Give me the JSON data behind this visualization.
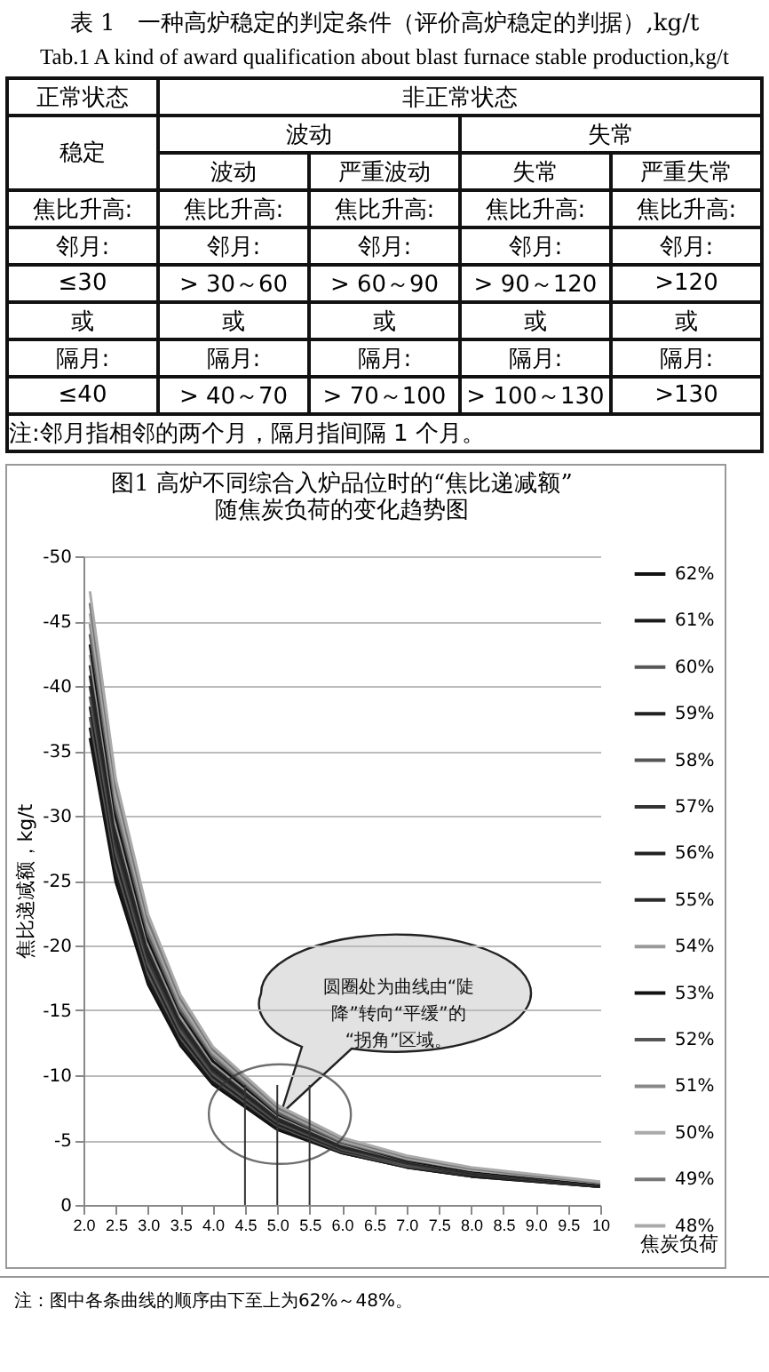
{
  "chart_data": [
    {
      "type": "other",
      "title": "表 1　一种高炉稳定的判定条件（评价高炉稳定的判据）,kg/t",
      "subtitle": "Tab.1 A kind of award qualification about blast furnace stable production,kg/t",
      "annotations": [
        "正常状态",
        "非正常状态",
        "稳定",
        "波动",
        "失常",
        "波动",
        "严重波动",
        "失常",
        "严重失常",
        "焦比升高:",
        "焦比升高:",
        "焦比升高:",
        "焦比升高:",
        "焦比升高:",
        "邻月:",
        "邻月:",
        "邻月:",
        "邻月:",
        "邻月:",
        "≤30",
        "> 30～60",
        "> 60～90",
        "> 90～120",
        ">120",
        "或",
        "或",
        "或",
        "或",
        "或",
        "隔月:",
        "隔月:",
        "隔月:",
        "隔月:",
        "隔月:",
        "≤40",
        "> 40～70",
        "> 70～100",
        "> 100～130",
        ">130",
        "注:邻月指相邻的两个月，隔月指间隔 1 个月。"
      ]
    },
    {
      "type": "line",
      "title": "图1  高炉不同综合入炉品位时的“焦比递减额”\n随焦炭负荷的变化趋势图",
      "xlabel": "焦炭负荷",
      "ylabel": "焦比递减额，kg/t",
      "x": [
        2.1,
        2.5,
        3,
        3.5,
        4,
        5,
        6,
        7,
        8,
        10
      ],
      "xlim": [
        2,
        10
      ],
      "ylim": [
        0,
        -50
      ],
      "xticks": [
        {
          "value": 2,
          "label": "2.0"
        },
        2.5,
        {
          "value": 3,
          "label": "3.0"
        },
        3.5,
        {
          "value": 4,
          "label": "4.0"
        },
        4.5,
        {
          "value": 5,
          "label": "5.0"
        },
        5.5,
        {
          "value": 6,
          "label": "6.0"
        },
        6.5,
        {
          "value": 7,
          "label": "7.0"
        },
        7.5,
        {
          "value": 8,
          "label": "8.0"
        },
        8.5,
        {
          "value": 9,
          "label": "9.0"
        },
        9.5,
        10
      ],
      "yticks": [
        0,
        -5,
        -10,
        -15,
        -20,
        -25,
        -30,
        -35,
        -40,
        -45,
        -50
      ],
      "grid": "y",
      "legend": "right",
      "series": [
        {
          "name": "62%",
          "color": "#111111",
          "values": [
            -36.0,
            -24.9,
            -17.0,
            -12.3,
            -9.3,
            -5.8,
            -4.0,
            -2.9,
            -2.2,
            -1.4
          ]
        },
        {
          "name": "61%",
          "color": "#1a1a1a",
          "values": [
            -36.8,
            -25.5,
            -17.4,
            -12.6,
            -9.5,
            -6.0,
            -4.0,
            -2.9,
            -2.2,
            -1.4
          ]
        },
        {
          "name": "60%",
          "color": "#555555",
          "values": [
            -37.6,
            -26.1,
            -17.8,
            -12.9,
            -9.7,
            -6.1,
            -4.1,
            -3.0,
            -2.3,
            -1.4
          ]
        },
        {
          "name": "59%",
          "color": "#222222",
          "values": [
            -38.4,
            -26.6,
            -18.2,
            -13.1,
            -9.9,
            -6.2,
            -4.2,
            -3.1,
            -2.3,
            -1.4
          ]
        },
        {
          "name": "58%",
          "color": "#555555",
          "values": [
            -39.2,
            -27.2,
            -18.5,
            -13.4,
            -10.1,
            -6.4,
            -4.3,
            -3.1,
            -2.4,
            -1.5
          ]
        },
        {
          "name": "57%",
          "color": "#333333",
          "values": [
            -40.0,
            -27.7,
            -18.9,
            -13.7,
            -10.3,
            -6.5,
            -4.4,
            -3.2,
            -2.4,
            -1.5
          ]
        },
        {
          "name": "56%",
          "color": "#222222",
          "values": [
            -40.8,
            -28.3,
            -19.3,
            -14.0,
            -10.5,
            -6.6,
            -4.5,
            -3.3,
            -2.5,
            -1.5
          ]
        },
        {
          "name": "55%",
          "color": "#2a2a2a",
          "values": [
            -41.6,
            -28.8,
            -19.7,
            -14.2,
            -10.7,
            -6.7,
            -4.6,
            -3.3,
            -2.5,
            -1.6
          ]
        },
        {
          "name": "54%",
          "color": "#999999",
          "values": [
            -42.4,
            -29.4,
            -20.1,
            -14.5,
            -10.9,
            -6.9,
            -4.7,
            -3.4,
            -2.6,
            -1.6
          ]
        },
        {
          "name": "53%",
          "color": "#111111",
          "values": [
            -43.2,
            -29.9,
            -20.4,
            -14.8,
            -11.1,
            -7.0,
            -4.8,
            -3.4,
            -2.6,
            -1.6
          ]
        },
        {
          "name": "52%",
          "color": "#555555",
          "values": [
            -44.0,
            -30.5,
            -20.8,
            -15.0,
            -11.4,
            -7.1,
            -4.8,
            -3.5,
            -2.7,
            -1.7
          ]
        },
        {
          "name": "51%",
          "color": "#888888",
          "values": [
            -44.8,
            -31.0,
            -21.2,
            -15.3,
            -11.6,
            -7.3,
            -4.9,
            -3.6,
            -2.7,
            -1.7
          ]
        },
        {
          "name": "50%",
          "color": "#aaaaaa",
          "values": [
            -45.6,
            -31.6,
            -21.6,
            -15.6,
            -11.8,
            -7.4,
            -5.0,
            -3.6,
            -2.7,
            -1.7
          ]
        },
        {
          "name": "49%",
          "color": "#777777",
          "values": [
            -46.4,
            -32.2,
            -21.9,
            -15.9,
            -12.0,
            -7.5,
            -5.1,
            -3.7,
            -2.8,
            -1.7
          ]
        },
        {
          "name": "48%",
          "color": "#aaaaaa",
          "values": [
            -47.3,
            -32.8,
            -22.4,
            -16.2,
            -12.2,
            -7.7,
            -5.2,
            -3.8,
            -2.9,
            -1.8
          ]
        }
      ],
      "ref_lines": [
        {
          "axis": "x",
          "value": 4.5
        },
        {
          "axis": "x",
          "value": 5
        },
        {
          "axis": "x",
          "value": 5.5
        }
      ],
      "annotations": [
        "圆圈处为曲线由“陡降”转向“平缓”的“拐角”区域。",
        "注：图中各条曲线的顺序由下至上为62%～48%。"
      ]
    }
  ]
}
